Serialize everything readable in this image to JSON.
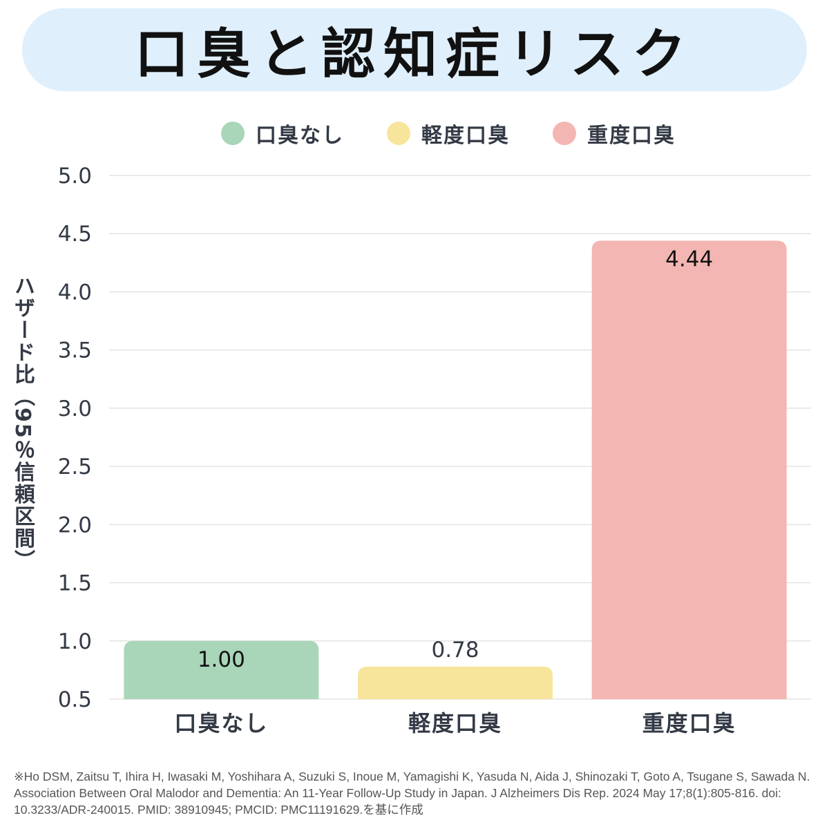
{
  "title": "口臭と認知症リスク",
  "chart_data": {
    "type": "bar",
    "title": "口臭と認知症リスク",
    "categories": [
      "口臭なし",
      "軽度口臭",
      "重度口臭"
    ],
    "values": [
      1.0,
      0.78,
      4.44
    ],
    "value_labels": [
      "1.00",
      "0.78",
      "4.44"
    ],
    "colors": [
      "#a9d5b9",
      "#f7e59c",
      "#f4b6b3"
    ],
    "legend": [
      "口臭なし",
      "軽度口臭",
      "重度口臭"
    ],
    "legend_position": "top-center",
    "ylabel": "ハザード比（95％信頼区間）",
    "xlabel": "",
    "ylim": [
      0.5,
      5.0
    ],
    "yticks": [
      "0.5",
      "1.0",
      "1.5",
      "2.0",
      "2.5",
      "3.0",
      "3.5",
      "4.0",
      "4.5",
      "5.0"
    ],
    "grid": true
  },
  "footnote": "※Ho DSM, Zaitsu T, Ihira H, Iwasaki M, Yoshihara A, Suzuki S, Inoue M, Yamagishi K, Yasuda N, Aida J, Shinozaki T, Goto A, Tsugane S, Sawada N. Association Between Oral Malodor and Dementia: An 11-Year Follow-Up Study in Japan. J Alzheimers Dis Rep. 2024 May 17;8(1):805-816. doi: 10.3233/ADR-240015. PMID: 38910945; PMCID: PMC11191629.を基に作成"
}
